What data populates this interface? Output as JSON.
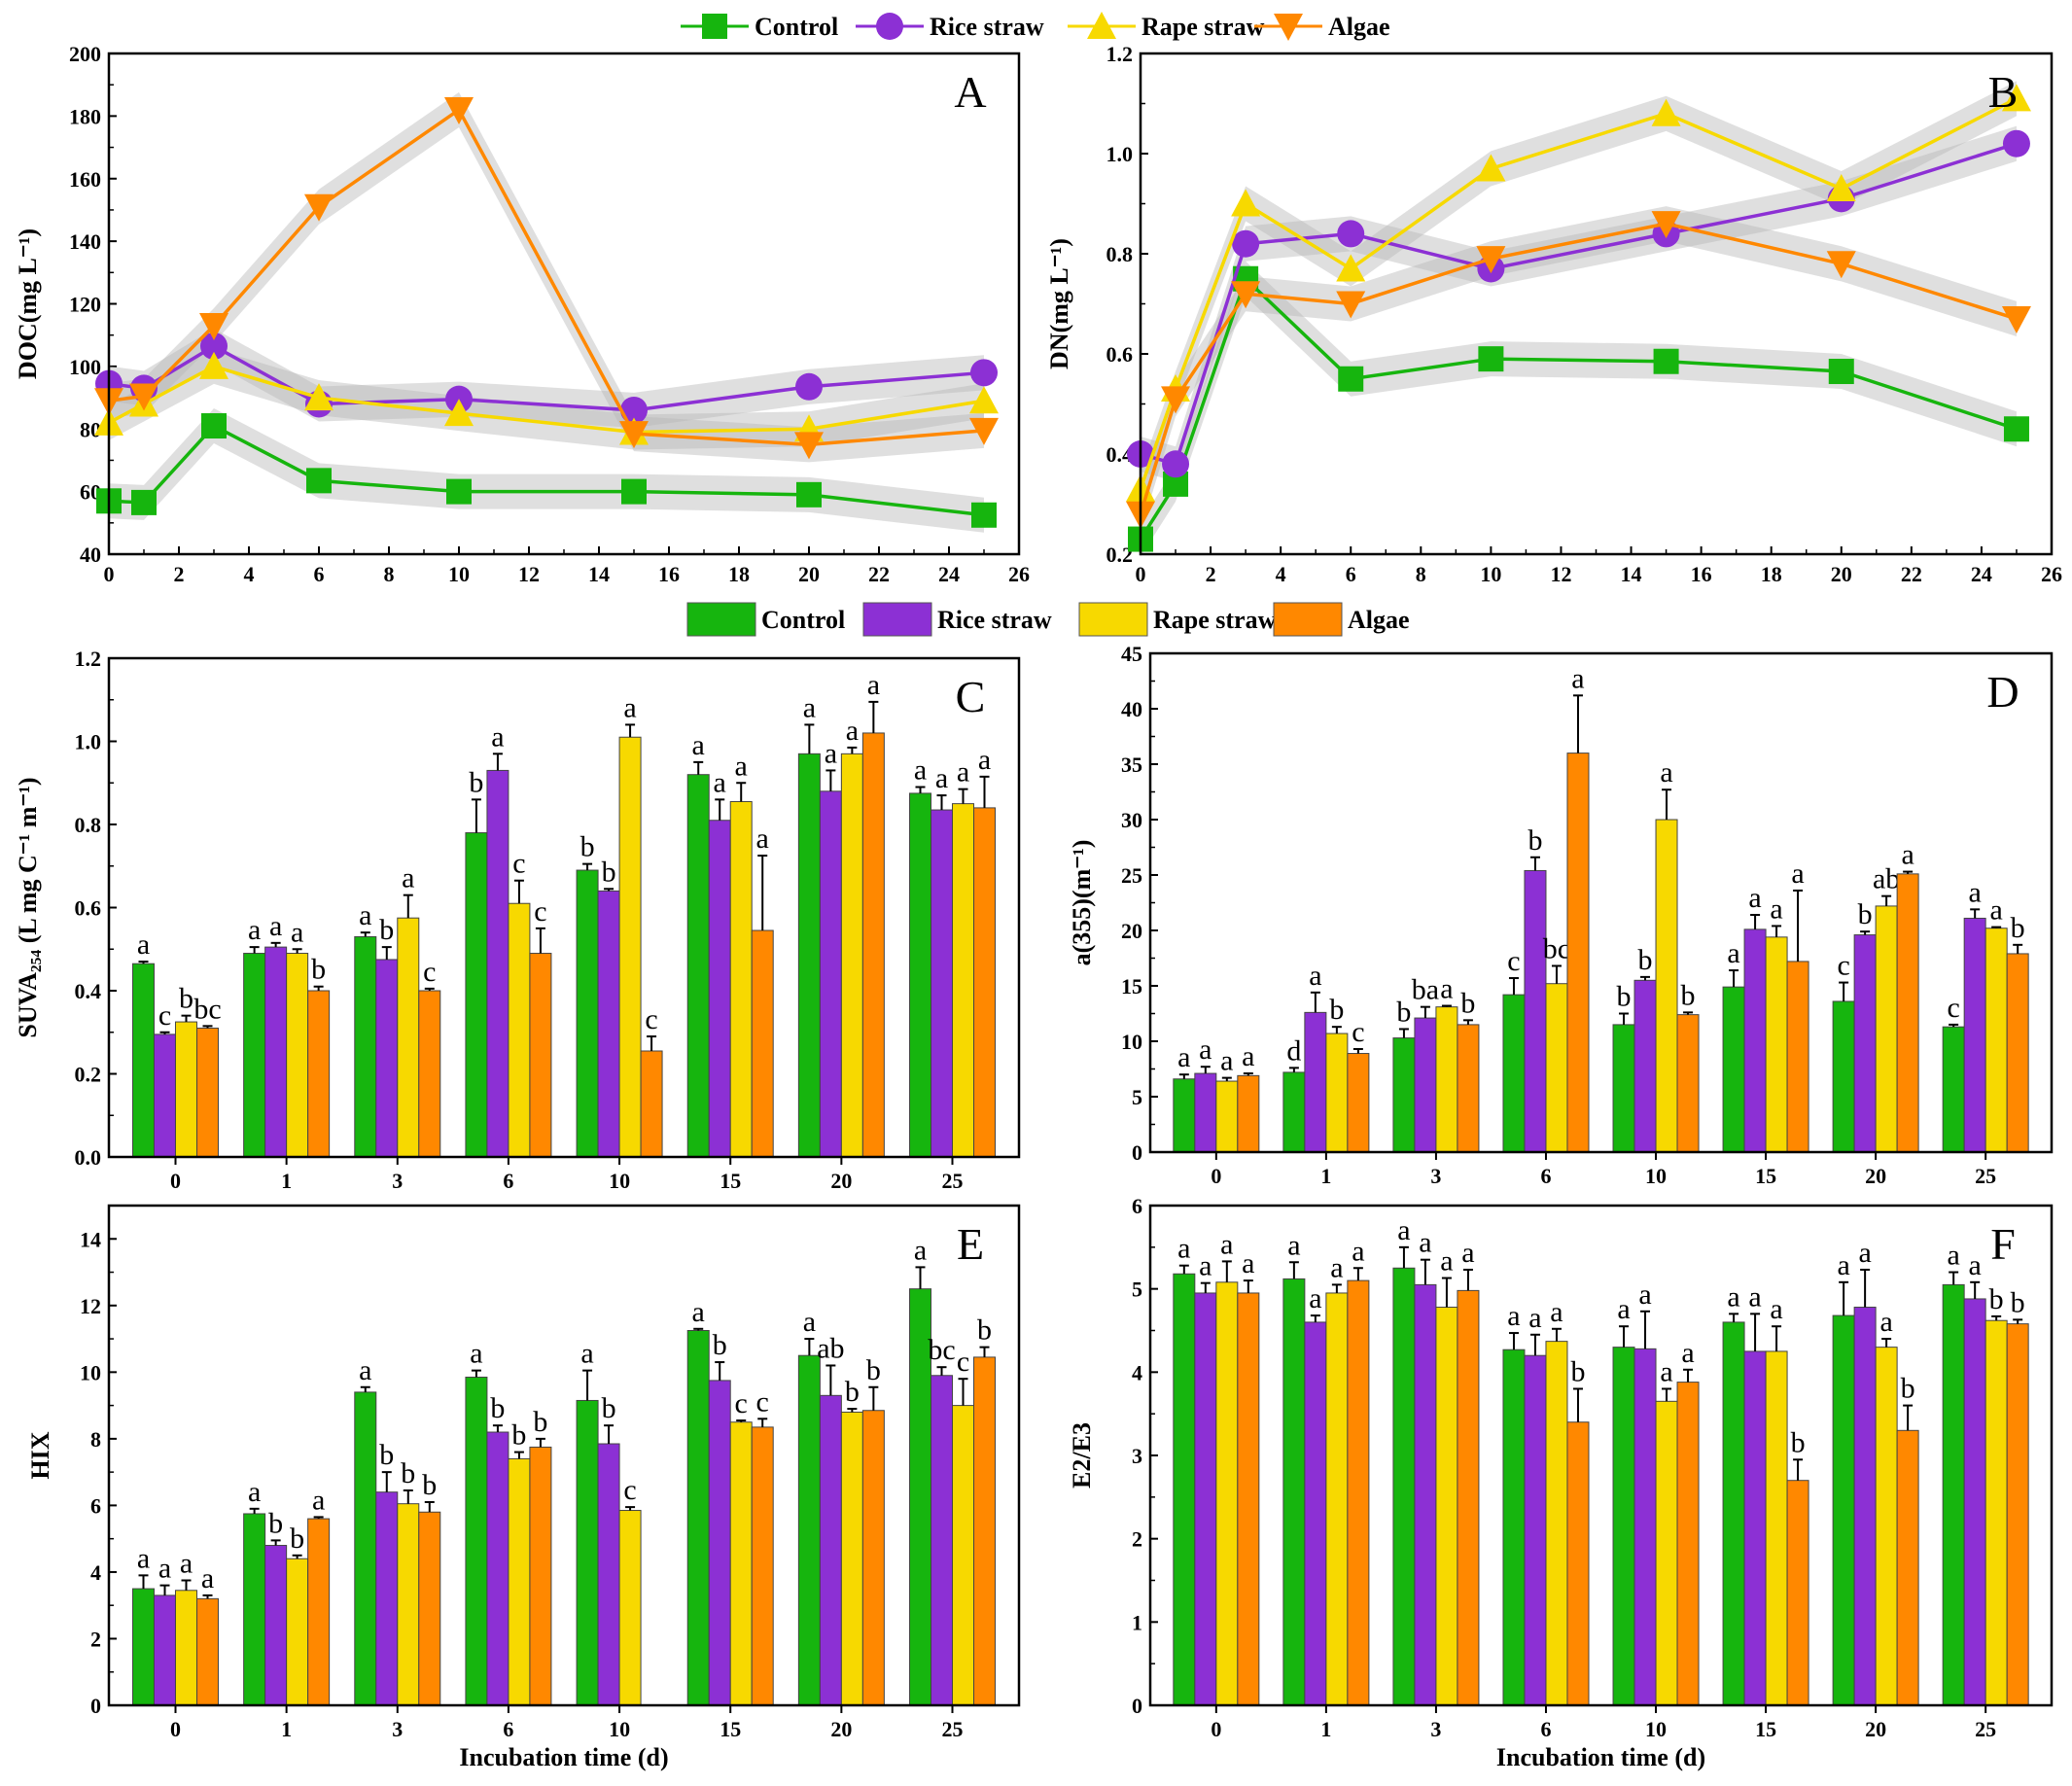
{
  "colors": {
    "Control": "#16b50e",
    "Rice straw": "#8c30d4",
    "Rape straw": "#f7d900",
    "Algae": "#ff8800",
    "band": "#b9b9b9"
  },
  "legend_top": {
    "items": [
      "Control",
      "Rice straw",
      "Rape straw",
      "Algae"
    ]
  },
  "legend_mid": {
    "items": [
      "Control",
      "Rice straw",
      "Rape straw",
      "Algae"
    ]
  },
  "chart_data": [
    {
      "panel": "A",
      "type": "line",
      "ylabel": "DOC(mg L⁻¹)",
      "xlabel": "",
      "xlim": [
        0,
        26
      ],
      "ylim": [
        40,
        200
      ],
      "xticks": [
        0,
        2,
        4,
        6,
        8,
        10,
        12,
        14,
        16,
        18,
        20,
        22,
        24,
        26
      ],
      "yticks": [
        40,
        60,
        80,
        100,
        120,
        140,
        160,
        180,
        200
      ],
      "x": [
        0,
        1,
        3,
        6,
        10,
        15,
        20,
        25
      ],
      "series": [
        {
          "name": "Control",
          "marker": "square",
          "values": [
            57,
            56.5,
            81,
            63.5,
            60,
            60,
            59,
            52.5
          ]
        },
        {
          "name": "Rice straw",
          "marker": "circle",
          "values": [
            94.5,
            93,
            106.5,
            88,
            89.5,
            86,
            93.5,
            98
          ]
        },
        {
          "name": "Rape straw",
          "marker": "triangle-up",
          "values": [
            82,
            88,
            100,
            90,
            85,
            79,
            80,
            89
          ]
        },
        {
          "name": "Algae",
          "marker": "triangle-down",
          "values": [
            89,
            90.5,
            113,
            151,
            182,
            78.5,
            75,
            79.5
          ]
        }
      ]
    },
    {
      "panel": "B",
      "type": "line",
      "ylabel": "DN(mg L⁻¹)",
      "xlabel": "",
      "xlim": [
        0,
        26
      ],
      "ylim": [
        0.2,
        1.2
      ],
      "xticks": [
        0,
        2,
        4,
        6,
        8,
        10,
        12,
        14,
        16,
        18,
        20,
        22,
        24,
        26
      ],
      "yticks": [
        "0.2",
        "0.4",
        "0.6",
        "0.8",
        "1.0",
        "1.2"
      ],
      "x": [
        0,
        1,
        3,
        6,
        10,
        15,
        20,
        25
      ],
      "series": [
        {
          "name": "Control",
          "marker": "square",
          "values": [
            0.23,
            0.34,
            0.75,
            0.55,
            0.59,
            0.585,
            0.565,
            0.45
          ]
        },
        {
          "name": "Rice straw",
          "marker": "circle",
          "values": [
            0.4,
            0.38,
            0.82,
            0.84,
            0.77,
            0.84,
            0.91,
            1.02
          ]
        },
        {
          "name": "Rape straw",
          "marker": "triangle-up",
          "values": [
            0.33,
            0.53,
            0.9,
            0.77,
            0.97,
            1.08,
            0.93,
            1.11
          ]
        },
        {
          "name": "Algae",
          "marker": "triangle-down",
          "values": [
            0.28,
            0.51,
            0.72,
            0.7,
            0.79,
            0.86,
            0.78,
            0.67
          ]
        }
      ]
    },
    {
      "panel": "C",
      "type": "bar",
      "ylabel": "SUVA₂₅₄ (L mg C⁻¹ m⁻¹)",
      "xlabel": "",
      "ylim": [
        0,
        1.2
      ],
      "yticks": [
        "0.0",
        "0.2",
        "0.4",
        "0.6",
        "0.8",
        "1.0",
        "1.2"
      ],
      "categories": [
        "0",
        "1",
        "3",
        "6",
        "10",
        "15",
        "20",
        "25"
      ],
      "series": [
        {
          "name": "Control",
          "values": [
            0.465,
            0.49,
            0.53,
            0.78,
            0.69,
            0.92,
            0.97,
            0.875
          ],
          "errors": [
            0.005,
            0.015,
            0.01,
            0.08,
            0.015,
            0.03,
            0.07,
            0.015
          ],
          "letters": [
            "a",
            "a",
            "a",
            "b",
            "b",
            "a",
            "a",
            "a"
          ]
        },
        {
          "name": "Rice straw",
          "values": [
            0.295,
            0.505,
            0.475,
            0.93,
            0.64,
            0.81,
            0.88,
            0.835
          ],
          "errors": [
            0.005,
            0.01,
            0.03,
            0.04,
            0.005,
            0.05,
            0.05,
            0.035
          ],
          "letters": [
            "c",
            "a",
            "b",
            "a",
            "b",
            "a",
            "a",
            "a"
          ]
        },
        {
          "name": "Rape straw",
          "values": [
            0.325,
            0.49,
            0.575,
            0.61,
            1.01,
            0.855,
            0.97,
            0.85
          ],
          "errors": [
            0.015,
            0.01,
            0.055,
            0.055,
            0.03,
            0.045,
            0.015,
            0.035
          ],
          "letters": [
            "b",
            "a",
            "a",
            "c",
            "a",
            "a",
            "a",
            "a"
          ]
        },
        {
          "name": "Algae",
          "values": [
            0.31,
            0.4,
            0.4,
            0.49,
            0.255,
            0.545,
            1.02,
            0.84
          ],
          "errors": [
            0.005,
            0.01,
            0.005,
            0.06,
            0.035,
            0.18,
            0.075,
            0.075
          ],
          "letters": [
            "bc",
            "b",
            "c",
            "c",
            "c",
            "a",
            "a",
            "a"
          ]
        }
      ]
    },
    {
      "panel": "D",
      "type": "bar",
      "ylabel": "a(355)(m⁻¹)",
      "xlabel": "",
      "ylim": [
        0,
        45
      ],
      "yticks": [
        "0",
        "5",
        "10",
        "15",
        "20",
        "25",
        "30",
        "35",
        "40",
        "45"
      ],
      "categories": [
        "0",
        "1",
        "3",
        "6",
        "10",
        "15",
        "20",
        "25"
      ],
      "series": [
        {
          "name": "Control",
          "values": [
            6.6,
            7.2,
            10.3,
            14.2,
            11.5,
            14.9,
            13.6,
            11.3
          ],
          "errors": [
            0.4,
            0.4,
            0.8,
            1.5,
            1.0,
            1.5,
            1.7,
            0.2
          ],
          "letters": [
            "a",
            "d",
            "b",
            "c",
            "b",
            "a",
            "c",
            "c"
          ]
        },
        {
          "name": "Rice straw",
          "values": [
            7.1,
            12.6,
            12.1,
            25.4,
            15.5,
            20.1,
            19.6,
            21.1
          ],
          "errors": [
            0.6,
            1.8,
            1.0,
            1.2,
            0.3,
            1.3,
            0.3,
            0.8
          ],
          "letters": [
            "a",
            "a",
            "ba",
            "b",
            "b",
            "a",
            "b",
            "a"
          ]
        },
        {
          "name": "Rape straw",
          "values": [
            6.4,
            10.7,
            13.1,
            15.2,
            30.0,
            19.4,
            22.2,
            20.2
          ],
          "errors": [
            0.3,
            0.6,
            0.1,
            1.6,
            2.7,
            1.0,
            0.9,
            0.1
          ],
          "letters": [
            "a",
            "b",
            "a",
            "bc",
            "a",
            "a",
            "ab",
            "a"
          ]
        },
        {
          "name": "Algae",
          "values": [
            6.9,
            8.9,
            11.5,
            36.0,
            12.4,
            17.2,
            25.1,
            17.9
          ],
          "errors": [
            0.2,
            0.4,
            0.4,
            5.2,
            0.2,
            6.4,
            0.2,
            0.8
          ],
          "letters": [
            "a",
            "c",
            "b",
            "a",
            "b",
            "a",
            "a",
            "b"
          ]
        }
      ]
    },
    {
      "panel": "E",
      "type": "bar",
      "ylabel": "HIX",
      "xlabel": "Incubation time (d)",
      "ylim": [
        0,
        15
      ],
      "yticks": [
        "0",
        "2",
        "4",
        "6",
        "8",
        "10",
        "12",
        "14"
      ],
      "categories": [
        "0",
        "1",
        "3",
        "6",
        "10",
        "15",
        "20",
        "25"
      ],
      "series": [
        {
          "name": "Control",
          "values": [
            3.5,
            5.75,
            9.4,
            9.85,
            9.15,
            11.25,
            10.5,
            12.5
          ],
          "errors": [
            0.4,
            0.15,
            0.15,
            0.2,
            0.9,
            0.05,
            0.5,
            0.65
          ],
          "letters": [
            "a",
            "a",
            "a",
            "a",
            "a",
            "a",
            "a",
            "a"
          ]
        },
        {
          "name": "Rice straw",
          "values": [
            3.3,
            4.8,
            6.4,
            8.2,
            7.85,
            9.75,
            9.3,
            9.9
          ],
          "errors": [
            0.3,
            0.15,
            0.6,
            0.2,
            0.55,
            0.55,
            0.9,
            0.25
          ],
          "letters": [
            "a",
            "b",
            "b",
            "b",
            "b",
            "b",
            "ab",
            "bc"
          ]
        },
        {
          "name": "Rape straw",
          "values": [
            3.45,
            4.4,
            6.05,
            7.4,
            5.85,
            8.5,
            8.8,
            9.0
          ],
          "errors": [
            0.3,
            0.1,
            0.4,
            0.2,
            0.1,
            0.05,
            0.1,
            0.8
          ],
          "letters": [
            "a",
            "b",
            "b",
            "b",
            "c",
            "c",
            "b",
            "c"
          ]
        },
        {
          "name": "Algae",
          "values": [
            3.2,
            5.6,
            5.8,
            7.75,
            0,
            8.35,
            8.85,
            10.45
          ],
          "errors": [
            0.1,
            0.05,
            0.3,
            0.25,
            0,
            0.25,
            0.7,
            0.3
          ],
          "letters": [
            "a",
            "a",
            "b",
            "b",
            "",
            "c",
            "b",
            "b"
          ]
        }
      ]
    },
    {
      "panel": "F",
      "type": "bar",
      "ylabel": "E2/E3",
      "xlabel": "Incubation time (d)",
      "ylim": [
        0,
        6
      ],
      "yticks": [
        "0",
        "1",
        "2",
        "3",
        "4",
        "5",
        "6"
      ],
      "categories": [
        "0",
        "1",
        "3",
        "6",
        "10",
        "15",
        "20",
        "25"
      ],
      "series": [
        {
          "name": "Control",
          "values": [
            5.18,
            5.12,
            5.25,
            4.27,
            4.3,
            4.6,
            4.68,
            5.05
          ],
          "errors": [
            0.1,
            0.2,
            0.25,
            0.2,
            0.25,
            0.1,
            0.4,
            0.15
          ],
          "letters": [
            "a",
            "a",
            "a",
            "a",
            "a",
            "a",
            "a",
            "a"
          ]
        },
        {
          "name": "Rice straw",
          "values": [
            4.95,
            4.6,
            5.05,
            4.2,
            4.28,
            4.25,
            4.78,
            4.88
          ],
          "errors": [
            0.12,
            0.08,
            0.3,
            0.25,
            0.45,
            0.45,
            0.45,
            0.2
          ],
          "letters": [
            "a",
            "a",
            "a",
            "a",
            "a",
            "a",
            "a",
            "a"
          ]
        },
        {
          "name": "Rape straw",
          "values": [
            5.08,
            4.95,
            4.78,
            4.37,
            3.65,
            4.25,
            4.3,
            4.62
          ],
          "errors": [
            0.25,
            0.1,
            0.35,
            0.15,
            0.15,
            0.3,
            0.1,
            0.05
          ],
          "letters": [
            "a",
            "a",
            "a",
            "a",
            "a",
            "a",
            "a",
            "b"
          ]
        },
        {
          "name": "Algae",
          "values": [
            4.95,
            5.1,
            4.98,
            3.4,
            3.88,
            2.7,
            3.3,
            4.58
          ],
          "errors": [
            0.15,
            0.15,
            0.25,
            0.4,
            0.15,
            0.25,
            0.3,
            0.05
          ],
          "letters": [
            "a",
            "a",
            "a",
            "b",
            "a",
            "b",
            "b",
            "b"
          ]
        }
      ]
    }
  ]
}
